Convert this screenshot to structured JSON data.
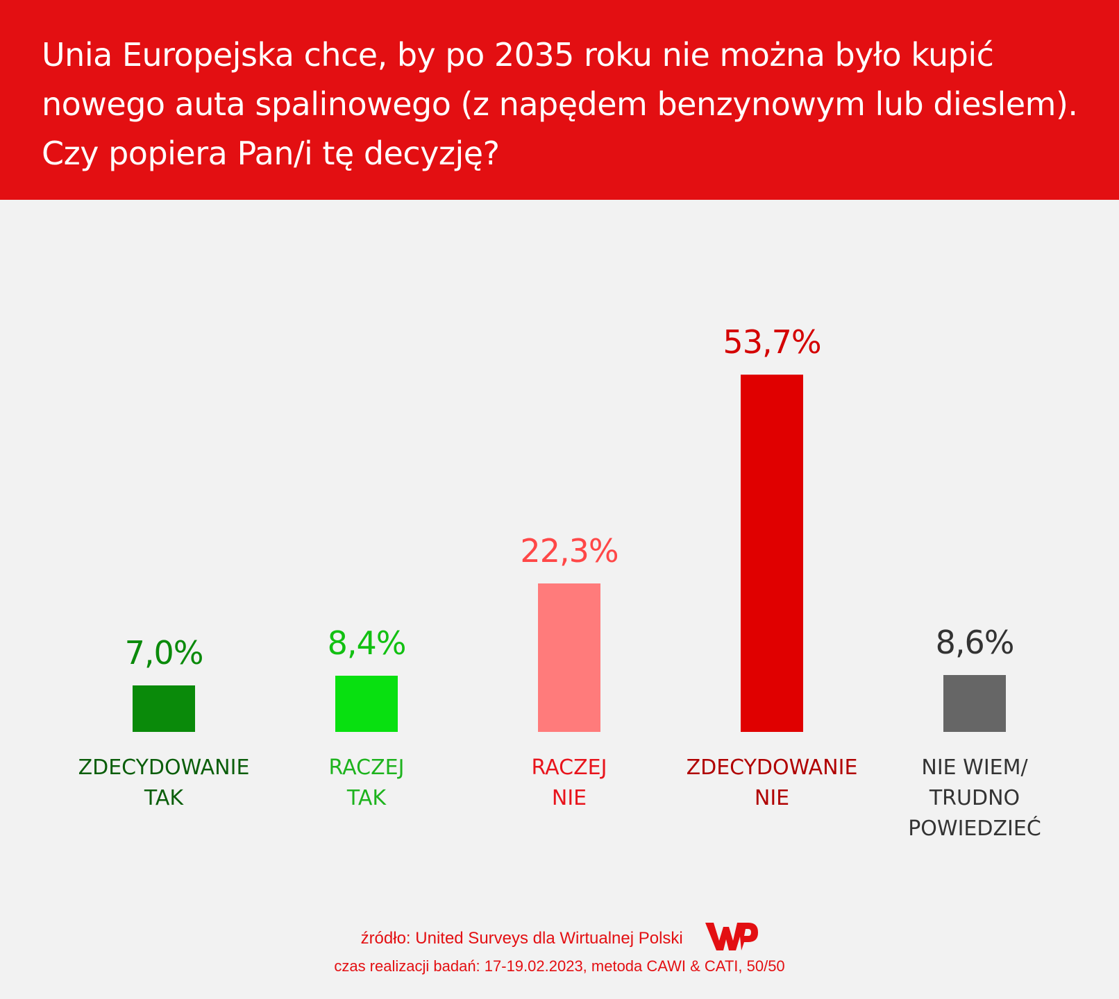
{
  "chart_data": {
    "type": "bar",
    "title": "Unia Europejska chce, by po 2035 roku nie można było kupić nowego auta spalinowego (z napędem benzynowym lub dieslem). Czy popiera Pan/i tę decyzję?",
    "categories": [
      [
        "ZDECYDOWANIE",
        "TAK"
      ],
      [
        "RACZEJ",
        "TAK"
      ],
      [
        "RACZEJ",
        "NIE"
      ],
      [
        "ZDECYDOWANIE",
        "NIE"
      ],
      [
        "NIE WIEM/",
        "TRUDNO",
        "POWIEDZIEĆ"
      ]
    ],
    "values": [
      7.0,
      8.4,
      22.3,
      53.7,
      8.6
    ],
    "value_labels": [
      "7,0%",
      "8,4%",
      "22,3%",
      "53,7%",
      "8,6%"
    ],
    "bar_colors": [
      "#0a8a0a",
      "#08e010",
      "#ff7b7b",
      "#e00000",
      "#666666"
    ],
    "value_colors": [
      "#0a8a0a",
      "#12c012",
      "#ff4747",
      "#d40000",
      "#333333"
    ],
    "label_colors": [
      "#0b5e0b",
      "#1db31d",
      "#e8141c",
      "#b00000",
      "#333333"
    ],
    "xlabel": "",
    "ylabel": "",
    "ylim": [
      0,
      60
    ],
    "grid": false,
    "legend": "none"
  },
  "footer": {
    "source": "źródło: United Surveys dla Wirtualnej Polski",
    "method": "czas realizacji badań: 17-19.02.2023, metoda CAWI & CATI, 50/50",
    "logo_text": "WP"
  },
  "colors": {
    "header": "#e30f12",
    "background": "#f2f2f2"
  }
}
